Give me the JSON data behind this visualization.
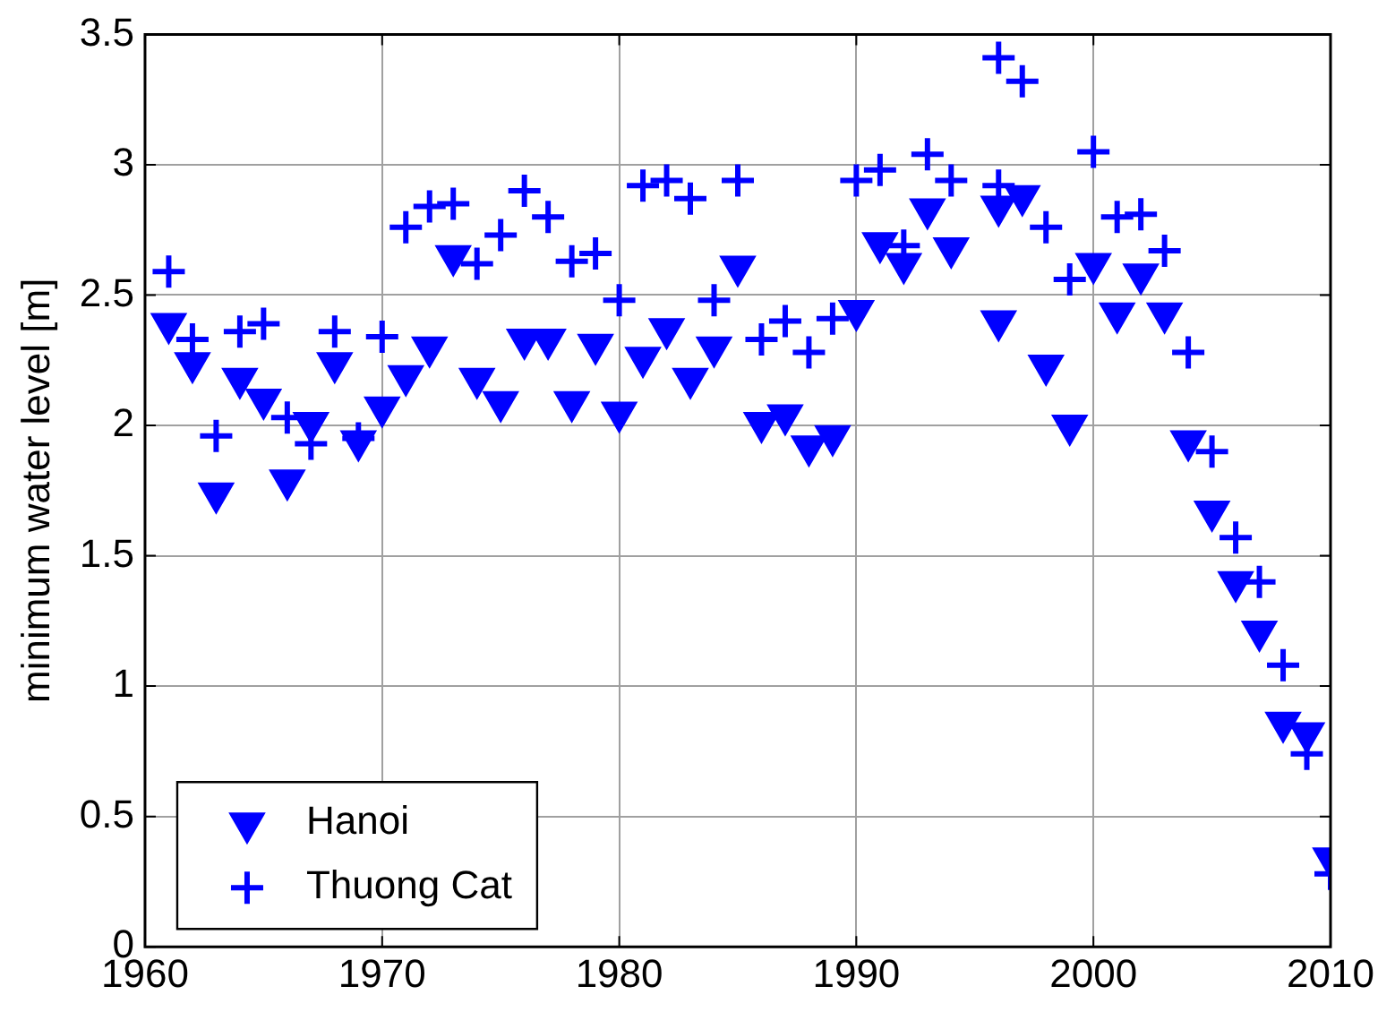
{
  "chart_data": {
    "type": "scatter",
    "ylabel": "minimum water level [m]",
    "xlim": [
      1960,
      2010
    ],
    "xticks": [
      1960,
      1970,
      1980,
      1990,
      2000,
      2010
    ],
    "ylim": [
      0,
      3.5
    ],
    "yticks": [
      0,
      0.5,
      1,
      1.5,
      2,
      2.5,
      3,
      3.5
    ],
    "grid": true,
    "legend": "bottom left",
    "series": [
      {
        "name": "Hanoi",
        "color": "#0000ff",
        "marker": "triangle",
        "x": [
          1961,
          1962,
          1963,
          1964,
          1965,
          1966,
          1967,
          1968,
          1969,
          1970,
          1971,
          1972,
          1973,
          1974,
          1975,
          1976,
          1977,
          1978,
          1979,
          1980,
          1981,
          1982,
          1983,
          1984,
          1985,
          1986,
          1987,
          1988,
          1989,
          1990,
          1991,
          1992,
          1993,
          1994,
          1996,
          1996,
          1997,
          1998,
          1999,
          2000,
          2001,
          2002,
          2003,
          2004,
          2005,
          2006,
          2007,
          2008,
          2009,
          2010
        ],
        "values": [
          2.39,
          2.24,
          1.74,
          2.18,
          2.1,
          1.79,
          2.01,
          2.24,
          1.94,
          2.07,
          2.19,
          2.3,
          2.65,
          2.18,
          2.09,
          2.33,
          2.33,
          2.09,
          2.31,
          2.05,
          2.26,
          2.37,
          2.18,
          2.3,
          2.61,
          2.01,
          2.04,
          1.92,
          1.96,
          2.44,
          2.7,
          2.62,
          2.83,
          2.68,
          2.84,
          2.4,
          2.88,
          2.23,
          2.0,
          2.62,
          2.43,
          2.58,
          2.43,
          1.94,
          1.67,
          1.4,
          1.21,
          0.86,
          0.82,
          0.34
        ]
      },
      {
        "name": "Thuong Cat",
        "color": "#0000ff",
        "marker": "cross",
        "x": [
          1961,
          1962,
          1963,
          1964,
          1965,
          1966,
          1967,
          1968,
          1969,
          1970,
          1971,
          1972,
          1973,
          1974,
          1975,
          1976,
          1977,
          1978,
          1979,
          1980,
          1981,
          1982,
          1983,
          1984,
          1985,
          1986,
          1987,
          1988,
          1989,
          1990,
          1991,
          1992,
          1993,
          1994,
          1996,
          1996,
          1997,
          1998,
          1999,
          2000,
          2001,
          2002,
          2003,
          2004,
          2005,
          2006,
          2007,
          2008,
          2009,
          2010
        ],
        "values": [
          2.59,
          2.33,
          1.96,
          2.36,
          2.39,
          2.03,
          1.93,
          2.36,
          1.95,
          2.34,
          2.76,
          2.84,
          2.85,
          2.62,
          2.73,
          2.9,
          2.8,
          2.63,
          2.66,
          2.48,
          2.92,
          2.94,
          2.87,
          2.48,
          2.94,
          2.33,
          2.4,
          2.28,
          2.41,
          2.94,
          2.98,
          2.69,
          3.04,
          2.94,
          3.41,
          2.92,
          3.32,
          2.76,
          2.56,
          3.05,
          2.8,
          2.81,
          2.67,
          2.28,
          1.9,
          1.57,
          1.4,
          1.08,
          0.74,
          0.28
        ]
      }
    ]
  }
}
